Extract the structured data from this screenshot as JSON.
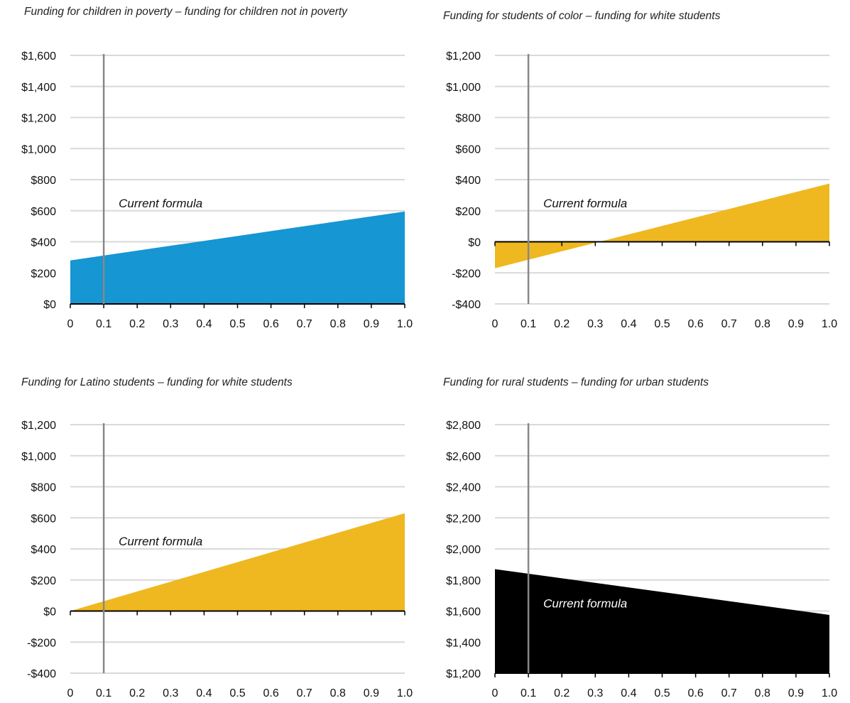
{
  "colors": {
    "blue": "#1696d2",
    "yellow": "#efb820",
    "black": "#000000",
    "grid": "#d9d9d9",
    "vline": "#888888"
  },
  "chart_data": [
    {
      "type": "area",
      "title": "Funding for children in poverty – funding for children not in poverty",
      "x": [
        0,
        1.0
      ],
      "y": [
        280,
        595
      ],
      "xticks": [
        "0",
        "0.1",
        "0.2",
        "0.3",
        "0.4",
        "0.5",
        "0.6",
        "0.7",
        "0.8",
        "0.9",
        "1.0"
      ],
      "ylim": [
        0,
        1600
      ],
      "yticks": [
        0,
        200,
        400,
        600,
        800,
        1000,
        1200,
        1400,
        1600
      ],
      "ytick_labels": [
        "$0",
        "$200",
        "$400",
        "$600",
        "$800",
        "$1,000",
        "$1,200",
        "$1,400",
        "$1,600"
      ],
      "baseline": 0,
      "fill": "#1696d2",
      "marker_x": 0.1,
      "annotation": "Current formula",
      "annotation_y": 650,
      "annotation_color": "#111111",
      "grid": true
    },
    {
      "type": "area",
      "title": "Funding for students of color – funding for white students",
      "x": [
        0,
        1.0
      ],
      "y": [
        -170,
        375
      ],
      "xticks": [
        "0",
        "0.1",
        "0.2",
        "0.3",
        "0.4",
        "0.5",
        "0.6",
        "0.7",
        "0.8",
        "0.9",
        "1.0"
      ],
      "ylim": [
        -400,
        1200
      ],
      "yticks": [
        -400,
        -200,
        0,
        200,
        400,
        600,
        800,
        1000,
        1200
      ],
      "ytick_labels": [
        "-$400",
        "-$200",
        "$0",
        "$200",
        "$400",
        "$600",
        "$800",
        "$1,000",
        "$1,200"
      ],
      "baseline": 0,
      "fill": "#efb820",
      "marker_x": 0.1,
      "annotation": "Current formula",
      "annotation_y": 250,
      "annotation_color": "#111111",
      "grid": true
    },
    {
      "type": "area",
      "title": "Funding for Latino students – funding for white students",
      "x": [
        0,
        1.0
      ],
      "y": [
        0,
        630
      ],
      "xticks": [
        "0",
        "0.1",
        "0.2",
        "0.3",
        "0.4",
        "0.5",
        "0.6",
        "0.7",
        "0.8",
        "0.9",
        "1.0"
      ],
      "ylim": [
        -400,
        1200
      ],
      "yticks": [
        -400,
        -200,
        0,
        200,
        400,
        600,
        800,
        1000,
        1200
      ],
      "ytick_labels": [
        "-$400",
        "-$200",
        "$0",
        "$200",
        "$400",
        "$600",
        "$800",
        "$1,000",
        "$1,200"
      ],
      "baseline": 0,
      "fill": "#efb820",
      "marker_x": 0.1,
      "annotation": "Current formula",
      "annotation_y": 450,
      "annotation_color": "#111111",
      "grid": true
    },
    {
      "type": "area",
      "title": "Funding for rural students – funding for urban students",
      "x": [
        0,
        1.0
      ],
      "y": [
        1870,
        1575
      ],
      "xticks": [
        "0",
        "0.1",
        "0.2",
        "0.3",
        "0.4",
        "0.5",
        "0.6",
        "0.7",
        "0.8",
        "0.9",
        "1.0"
      ],
      "ylim": [
        1200,
        2800
      ],
      "yticks": [
        1200,
        1400,
        1600,
        1800,
        2000,
        2200,
        2400,
        2600,
        2800
      ],
      "ytick_labels": [
        "$1,200",
        "$1,400",
        "$1,600",
        "$1,800",
        "$2,000",
        "$2,200",
        "$2,400",
        "$2,600",
        "$2,800"
      ],
      "baseline": 1200,
      "fill": "#000000",
      "marker_x": 0.1,
      "annotation": "Current formula",
      "annotation_y": 1650,
      "annotation_color": "#ffffff",
      "grid": true
    }
  ]
}
